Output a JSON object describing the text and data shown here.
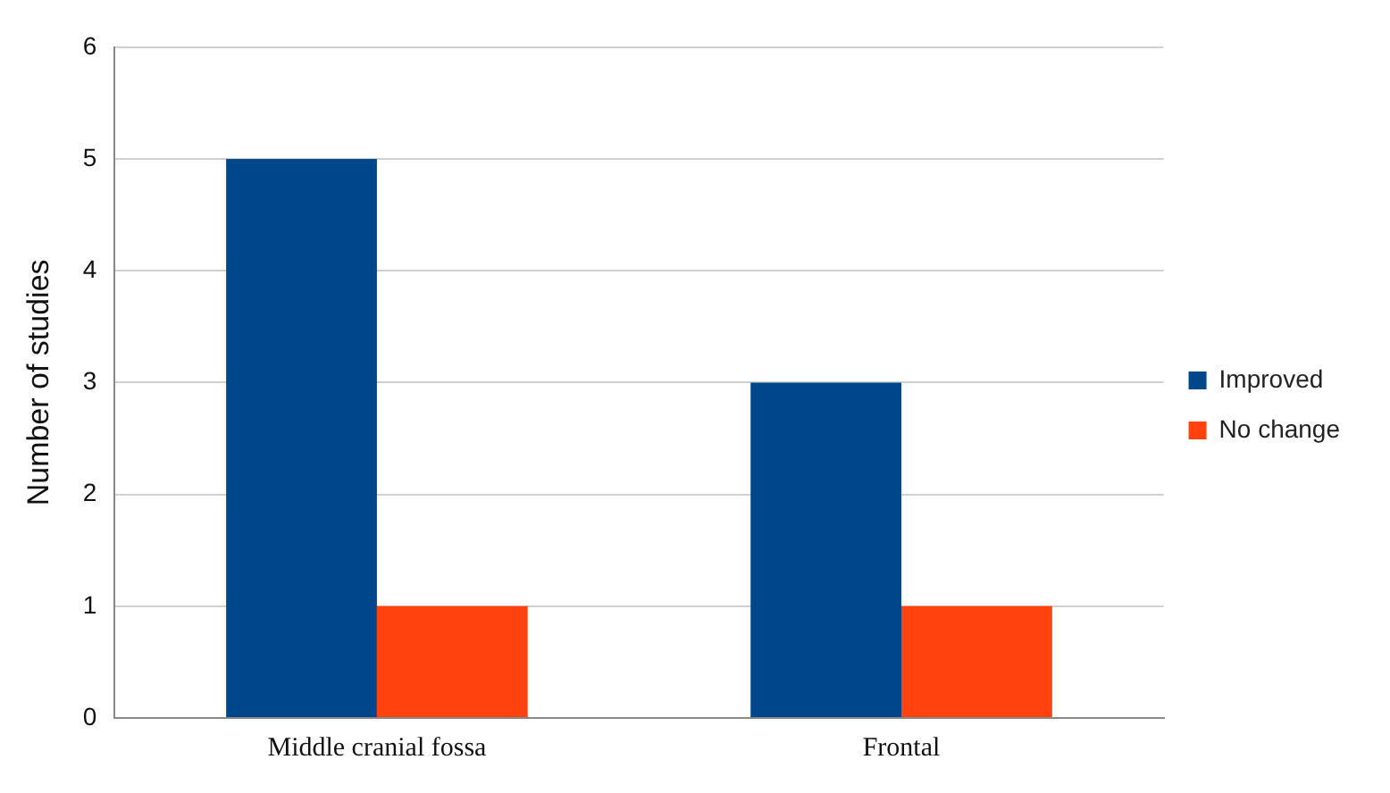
{
  "chart_data": {
    "type": "bar",
    "ylabel": "Number of studies",
    "categories": [
      "Middle cranial fossa",
      "Frontal"
    ],
    "series": [
      {
        "name": "Improved",
        "color": "#00468b",
        "values": [
          5,
          3
        ]
      },
      {
        "name": "No change",
        "color": "#ff420e",
        "values": [
          1,
          1
        ]
      }
    ],
    "ylim": [
      0,
      6
    ],
    "yticks": [
      0,
      1,
      2,
      3,
      4,
      5,
      6
    ],
    "grid": "y",
    "legend": "right"
  }
}
